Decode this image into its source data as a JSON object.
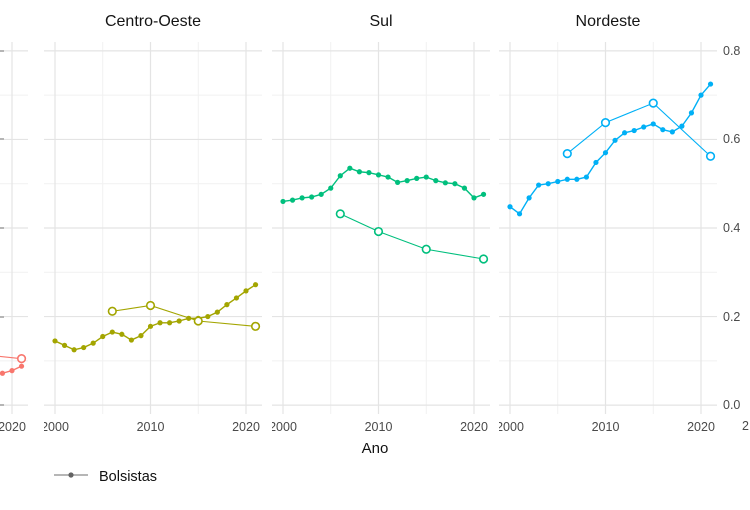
{
  "axis": {
    "xlabel": "Ano",
    "x_ticks": [
      2000,
      2010,
      2020
    ],
    "y_ticks": [
      0.8,
      0.6,
      0.4,
      0.2,
      0.0
    ],
    "ylim": [
      0.0,
      0.8
    ],
    "grid": "on",
    "major_grid_color": "#e4e4e4",
    "minor_grid_color": "#f1f1f1"
  },
  "legend": {
    "label": "Bolsistas",
    "line_color": "#8a8a8a",
    "dot_color": "#636363",
    "position": "bottom"
  },
  "partial_right_tick": "2",
  "chart_data": [
    {
      "type": "line",
      "panel": "",
      "color": "#F8766D",
      "series": [
        {
          "name": "Bolsistas",
          "marker": "filled",
          "x": [
            2017,
            2018,
            2019,
            2020,
            2021
          ],
          "y": [
            0.062,
            0.066,
            0.072,
            0.078,
            0.088
          ]
        },
        {
          "name": "open-circles",
          "marker": "open",
          "x": [
            2015,
            2021
          ],
          "y": [
            0.118,
            0.105
          ]
        }
      ]
    },
    {
      "type": "line",
      "panel": "Centro-Oeste",
      "color": "#A3A500",
      "series": [
        {
          "name": "Bolsistas",
          "marker": "filled",
          "x": [
            2000,
            2001,
            2002,
            2003,
            2004,
            2005,
            2006,
            2007,
            2008,
            2009,
            2010,
            2011,
            2012,
            2013,
            2014,
            2015,
            2016,
            2017,
            2018,
            2019,
            2020,
            2021
          ],
          "y": [
            0.145,
            0.135,
            0.125,
            0.13,
            0.14,
            0.155,
            0.165,
            0.16,
            0.147,
            0.157,
            0.178,
            0.186,
            0.186,
            0.19,
            0.196,
            0.196,
            0.2,
            0.21,
            0.227,
            0.242,
            0.258,
            0.272
          ]
        },
        {
          "name": "open-circles",
          "marker": "open",
          "x": [
            2006,
            2010,
            2015,
            2021
          ],
          "y": [
            0.212,
            0.225,
            0.19,
            0.178
          ]
        }
      ]
    },
    {
      "type": "line",
      "panel": "Sul",
      "color": "#00BF7D",
      "series": [
        {
          "name": "Bolsistas",
          "marker": "filled",
          "x": [
            2000,
            2001,
            2002,
            2003,
            2004,
            2005,
            2006,
            2007,
            2008,
            2009,
            2010,
            2011,
            2012,
            2013,
            2014,
            2015,
            2016,
            2017,
            2018,
            2019,
            2020,
            2021
          ],
          "y": [
            0.46,
            0.463,
            0.468,
            0.47,
            0.476,
            0.49,
            0.518,
            0.535,
            0.527,
            0.525,
            0.52,
            0.515,
            0.503,
            0.507,
            0.512,
            0.515,
            0.507,
            0.502,
            0.5,
            0.49,
            0.468,
            0.476
          ]
        },
        {
          "name": "open-circles",
          "marker": "open",
          "x": [
            2006,
            2010,
            2015,
            2021
          ],
          "y": [
            0.432,
            0.392,
            0.352,
            0.33
          ]
        }
      ]
    },
    {
      "type": "line",
      "panel": "Nordeste",
      "color": "#00B0F6",
      "series": [
        {
          "name": "Bolsistas",
          "marker": "filled",
          "x": [
            2000,
            2001,
            2002,
            2003,
            2004,
            2005,
            2006,
            2007,
            2008,
            2009,
            2010,
            2011,
            2012,
            2013,
            2014,
            2015,
            2016,
            2017,
            2018,
            2019,
            2020,
            2021
          ],
          "y": [
            0.448,
            0.432,
            0.468,
            0.497,
            0.5,
            0.505,
            0.51,
            0.51,
            0.515,
            0.548,
            0.57,
            0.598,
            0.615,
            0.62,
            0.628,
            0.635,
            0.622,
            0.617,
            0.63,
            0.66,
            0.7,
            0.725
          ]
        },
        {
          "name": "open-circles",
          "marker": "open",
          "x": [
            2006,
            2010,
            2015,
            2021
          ],
          "y": [
            0.568,
            0.638,
            0.682,
            0.562
          ]
        }
      ]
    }
  ]
}
